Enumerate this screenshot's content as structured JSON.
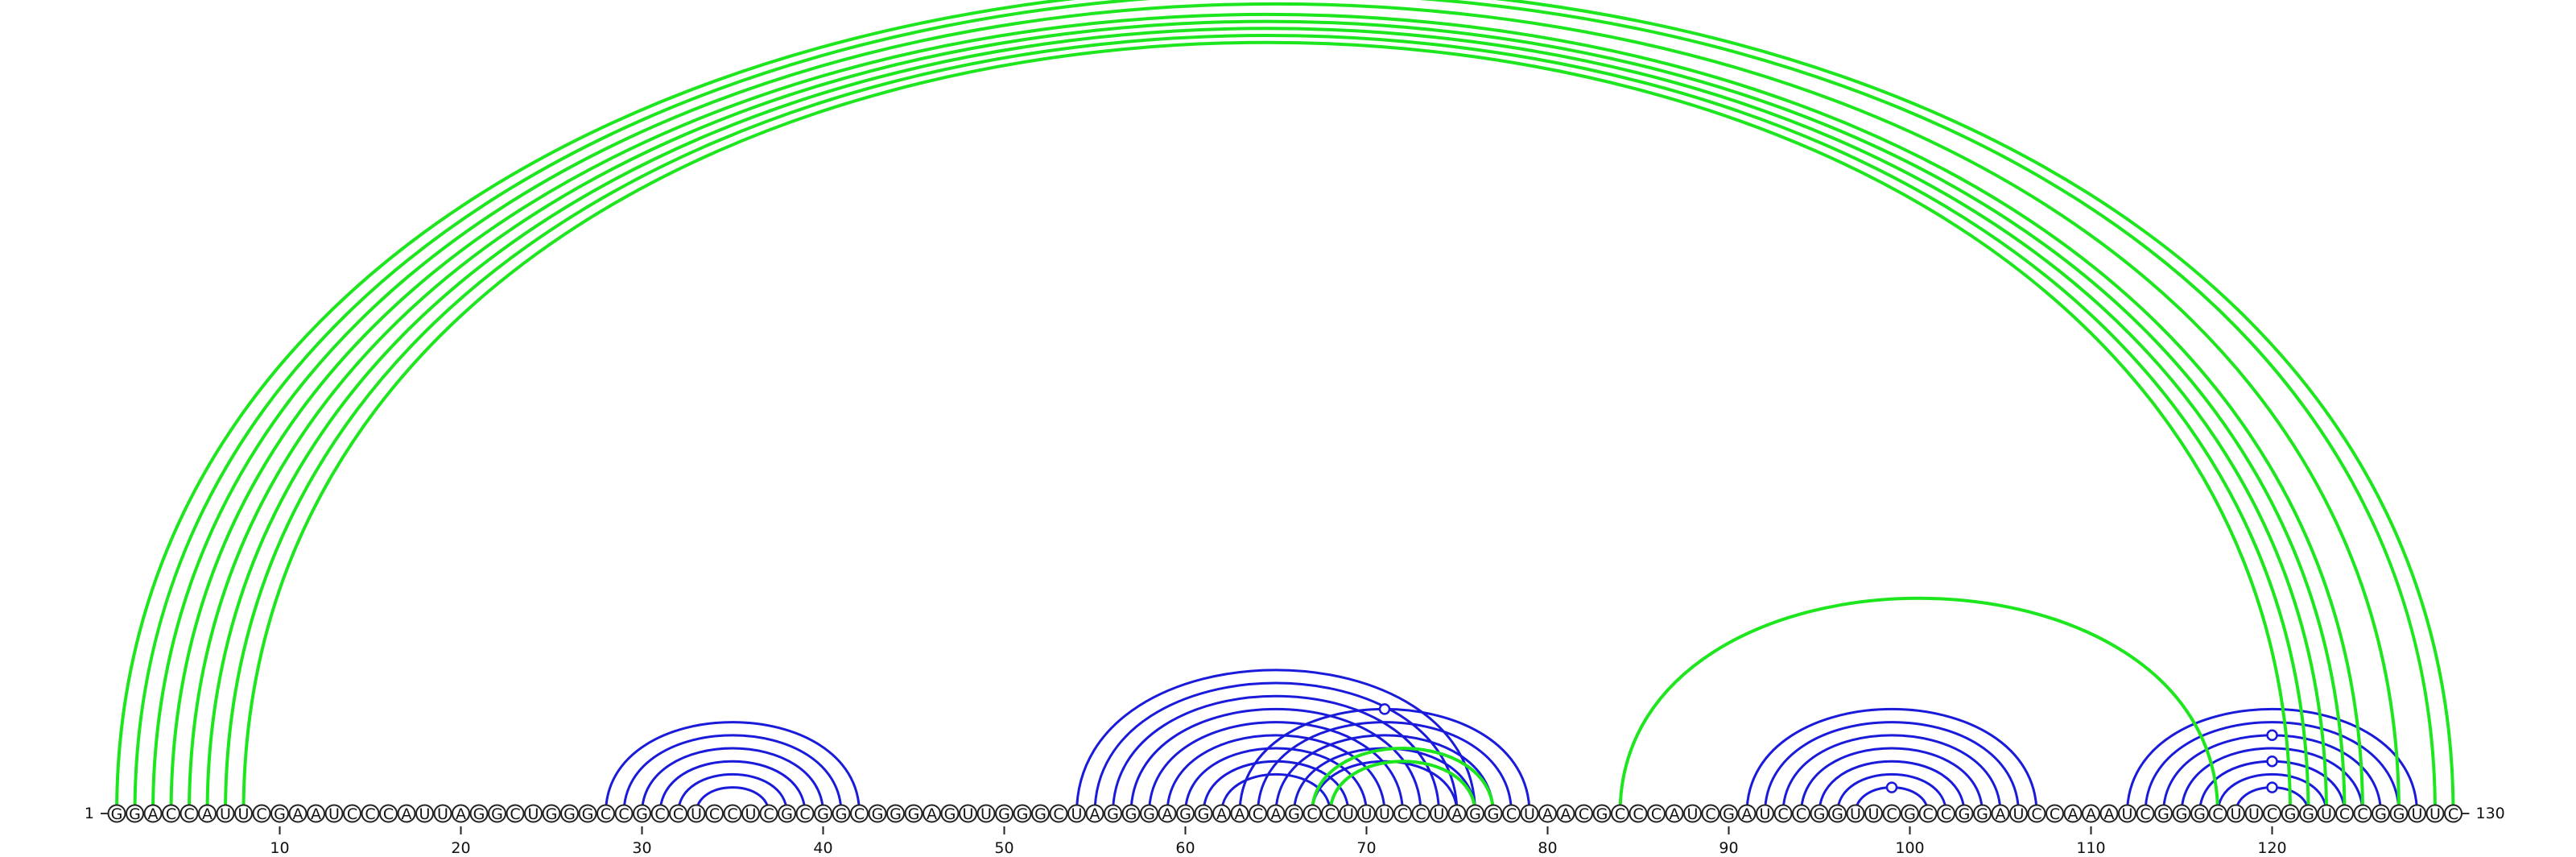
{
  "sequence": "GGACCAUUCGAAUCCCAUUAGGCUGGGCCGCCUCCUCGCGGCGGGAGUUGGGCUAGGGAGGAACAGCCUUUCCUAGGCUAACGCCCAUCGAUCCGGUUCGCCGGAUCCAAAUCGGGCUUCGGUCCGGUUC",
  "start_label": "1",
  "end_label": "130",
  "start_index": 1,
  "end_index": 130,
  "tick_positions": [
    10,
    20,
    30,
    40,
    50,
    60,
    70,
    80,
    90,
    100,
    110,
    120
  ],
  "colors": {
    "blue": "#1a1adb",
    "green": "#1ee61e"
  },
  "arcs": [
    {
      "i": 28,
      "j": 42,
      "color": "blue",
      "group": "hairpin-1"
    },
    {
      "i": 29,
      "j": 41,
      "color": "blue",
      "group": "hairpin-1"
    },
    {
      "i": 30,
      "j": 40,
      "color": "blue",
      "group": "hairpin-1"
    },
    {
      "i": 31,
      "j": 39,
      "color": "blue",
      "group": "hairpin-1"
    },
    {
      "i": 32,
      "j": 38,
      "color": "blue",
      "group": "hairpin-1"
    },
    {
      "i": 33,
      "j": 37,
      "color": "blue",
      "group": "hairpin-1"
    },
    {
      "i": 54,
      "j": 76,
      "color": "blue",
      "group": "hairpin-2"
    },
    {
      "i": 55,
      "j": 75,
      "color": "blue",
      "group": "hairpin-2"
    },
    {
      "i": 56,
      "j": 74,
      "color": "blue",
      "group": "hairpin-2"
    },
    {
      "i": 57,
      "j": 73,
      "color": "blue",
      "group": "hairpin-2"
    },
    {
      "i": 58,
      "j": 72,
      "color": "blue",
      "group": "hairpin-2"
    },
    {
      "i": 59,
      "j": 71,
      "color": "blue",
      "group": "hairpin-2"
    },
    {
      "i": 60,
      "j": 70,
      "color": "blue",
      "group": "hairpin-2"
    },
    {
      "i": 61,
      "j": 69,
      "color": "blue",
      "group": "hairpin-2"
    },
    {
      "i": 62,
      "j": 68,
      "color": "blue",
      "group": "hairpin-2"
    },
    {
      "i": 63,
      "j": 79,
      "color": "blue",
      "group": "hairpin-3"
    },
    {
      "i": 64,
      "j": 78,
      "color": "blue",
      "group": "hairpin-3"
    },
    {
      "i": 65,
      "j": 77,
      "color": "blue",
      "group": "hairpin-3"
    },
    {
      "i": 66,
      "j": 76,
      "color": "blue",
      "group": "hairpin-3"
    },
    {
      "i": 67,
      "j": 75,
      "color": "blue",
      "group": "hairpin-3"
    },
    {
      "i": 67,
      "j": 77,
      "color": "green",
      "group": "pseudoknot-1"
    },
    {
      "i": 68,
      "j": 76,
      "color": "green",
      "group": "pseudoknot-1"
    },
    {
      "i": 91,
      "j": 107,
      "color": "blue",
      "group": "hairpin-4"
    },
    {
      "i": 92,
      "j": 106,
      "color": "blue",
      "group": "hairpin-4"
    },
    {
      "i": 93,
      "j": 105,
      "color": "blue",
      "group": "hairpin-4"
    },
    {
      "i": 94,
      "j": 104,
      "color": "blue",
      "group": "hairpin-4"
    },
    {
      "i": 95,
      "j": 103,
      "color": "blue",
      "group": "hairpin-4"
    },
    {
      "i": 96,
      "j": 102,
      "color": "blue",
      "group": "hairpin-4"
    },
    {
      "i": 97,
      "j": 101,
      "color": "blue",
      "group": "hairpin-4"
    },
    {
      "i": 112,
      "j": 128,
      "color": "blue",
      "group": "hairpin-5"
    },
    {
      "i": 113,
      "j": 127,
      "color": "blue",
      "group": "hairpin-5"
    },
    {
      "i": 114,
      "j": 126,
      "color": "blue",
      "group": "hairpin-5"
    },
    {
      "i": 115,
      "j": 125,
      "color": "blue",
      "group": "hairpin-5"
    },
    {
      "i": 116,
      "j": 124,
      "color": "blue",
      "group": "hairpin-5"
    },
    {
      "i": 117,
      "j": 123,
      "color": "blue",
      "group": "hairpin-5"
    },
    {
      "i": 118,
      "j": 122,
      "color": "blue",
      "group": "hairpin-5"
    },
    {
      "i": 84,
      "j": 117,
      "color": "green",
      "group": "pseudoknot-2"
    },
    {
      "i": 1,
      "j": 130,
      "color": "green",
      "group": "long-range"
    },
    {
      "i": 2,
      "j": 129,
      "color": "green",
      "group": "long-range"
    },
    {
      "i": 3,
      "j": 127,
      "color": "green",
      "group": "long-range"
    },
    {
      "i": 4,
      "j": 125,
      "color": "green",
      "group": "long-range"
    },
    {
      "i": 5,
      "j": 124,
      "color": "green",
      "group": "long-range"
    },
    {
      "i": 6,
      "j": 123,
      "color": "green",
      "group": "long-range"
    },
    {
      "i": 7,
      "j": 122,
      "color": "green",
      "group": "long-range"
    },
    {
      "i": 8,
      "j": 121,
      "color": "green",
      "group": "long-range"
    }
  ]
}
